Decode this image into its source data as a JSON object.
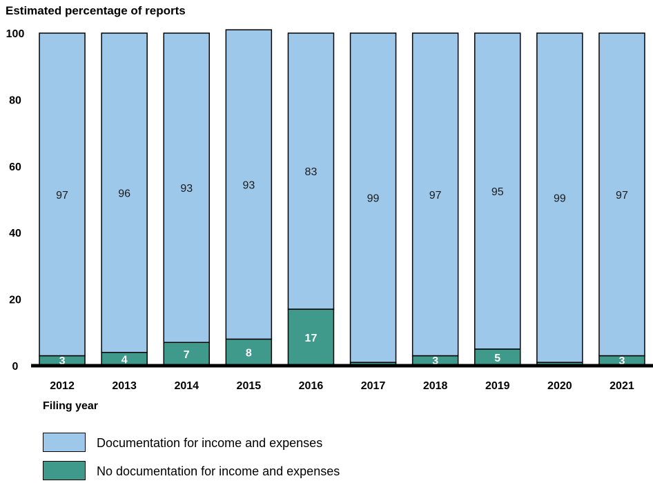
{
  "chart_data": {
    "type": "bar",
    "stacked": true,
    "ylabel": "Estimated percentage of reports",
    "xlabel": "Filing year",
    "ylim": [
      0,
      100
    ],
    "yticks": [
      0,
      20,
      40,
      60,
      80,
      100
    ],
    "categories": [
      "2012",
      "2013",
      "2014",
      "2015",
      "2016",
      "2017",
      "2018",
      "2019",
      "2020",
      "2021"
    ],
    "series": [
      {
        "name": "No documentation for income and expenses",
        "color": "#3f9a8c",
        "values": [
          3,
          4,
          7,
          8,
          17,
          1,
          3,
          5,
          1,
          3
        ]
      },
      {
        "name": "Documentation for income and expenses",
        "color": "#9dc8ea",
        "values": [
          97,
          96,
          93,
          93,
          83,
          99,
          97,
          95,
          99,
          97
        ]
      }
    ],
    "legend": "bottom-left"
  }
}
